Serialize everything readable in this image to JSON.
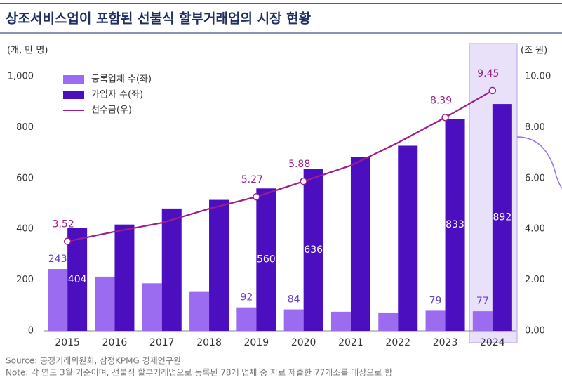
{
  "chart_data": {
    "type": "bar-line",
    "title": "상조서비스업이 포함된 선불식 할부거래업의 시장 현황",
    "y_unit": "(개, 만 명)",
    "y2_unit": "(조 원)",
    "categories": [
      "2015",
      "2016",
      "2017",
      "2018",
      "2019",
      "2020",
      "2021",
      "2022",
      "2023",
      "2024"
    ],
    "series": [
      {
        "name": "등록업체 수(좌)",
        "type": "bar",
        "color": "#9b6cf0",
        "values": [
          243,
          213,
          187,
          153,
          92,
          84,
          75,
          72,
          79,
          77
        ],
        "value_labels": [
          "243",
          null,
          null,
          null,
          "92",
          "84",
          null,
          null,
          "79",
          "77"
        ]
      },
      {
        "name": "가입자 수(좌)",
        "type": "bar",
        "color": "#4b0fbf",
        "values": [
          404,
          418,
          481,
          515,
          560,
          636,
          683,
          728,
          833,
          892
        ],
        "value_labels": [
          "404",
          null,
          null,
          null,
          "560",
          "636",
          null,
          null,
          "833",
          "892"
        ]
      },
      {
        "name": "선수금(우)",
        "type": "line",
        "axis": "y2",
        "color": "#9c1f8c",
        "values": [
          3.52,
          3.9,
          4.25,
          4.8,
          5.27,
          5.88,
          6.5,
          7.4,
          8.39,
          9.45
        ],
        "value_labels": [
          "3.52",
          null,
          null,
          null,
          "5.27",
          "5.88",
          null,
          null,
          "8.39",
          "9.45"
        ]
      }
    ],
    "ylim": [
      0,
      1000
    ],
    "yticks": [
      0,
      200,
      400,
      600,
      800,
      {
        "value": 1000,
        "label": "1,000"
      }
    ],
    "y2lim": [
      0,
      10
    ],
    "y2ticks": [
      {
        "value": 0,
        "label": "0.00"
      },
      {
        "value": 2,
        "label": "2.00"
      },
      {
        "value": 4,
        "label": "4.00"
      },
      {
        "value": 6,
        "label": "6.00"
      },
      {
        "value": 8,
        "label": "8.00"
      },
      {
        "value": 10,
        "label": "10.00"
      }
    ],
    "source": "Source: 공정거래위원회, 삼정KPMG 경제연구원",
    "note": "Note: 각 연도 3월 기준이며, 선불식 할부거래업으로 등록된 78개 업체 중 자료 제출한 77개소를 대상으로 함"
  }
}
